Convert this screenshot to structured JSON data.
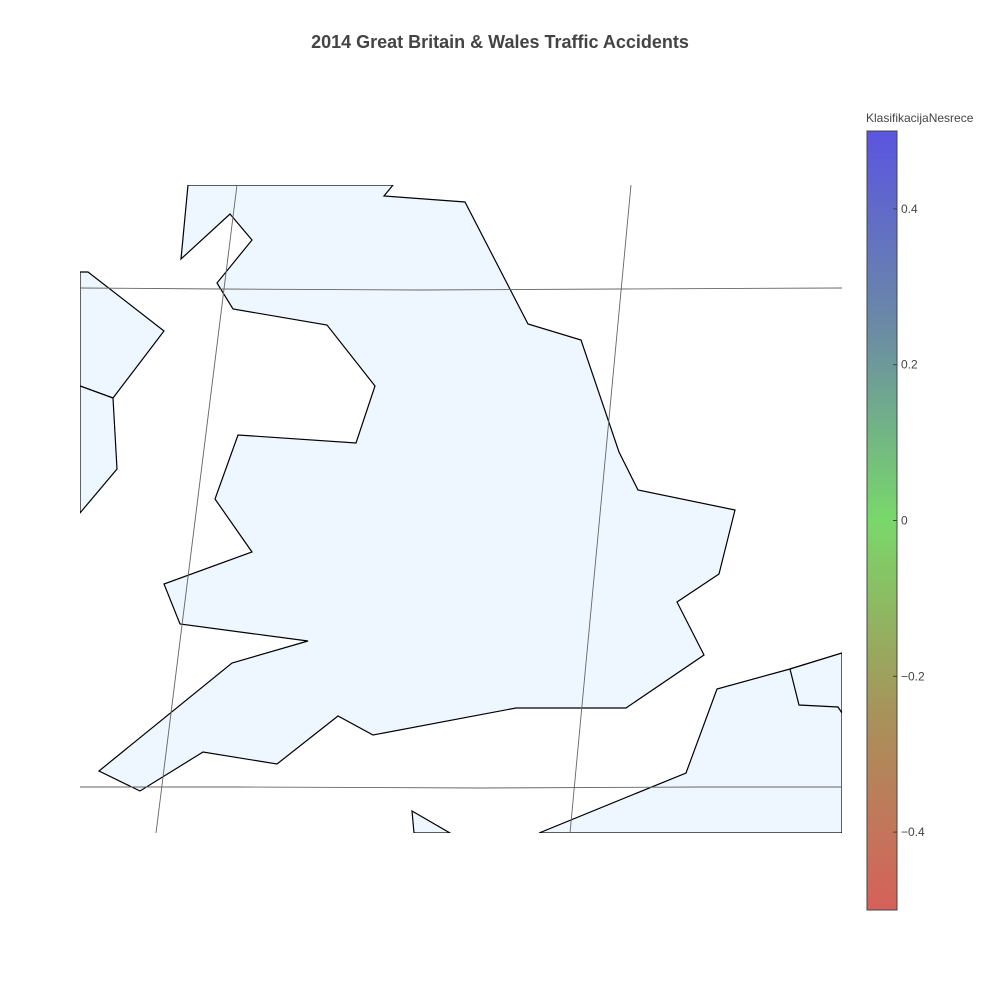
{
  "title": "2014 Great Britain & Wales Traffic Accidents",
  "colorbar": {
    "title": "KlasifikacijaNesrece",
    "min": -0.5,
    "max": 0.5,
    "ticks": [
      {
        "value": 0.4,
        "label": "0.4"
      },
      {
        "value": 0.2,
        "label": "0.2"
      },
      {
        "value": 0,
        "label": "0"
      },
      {
        "value": -0.2,
        "label": "−0.2"
      },
      {
        "value": -0.4,
        "label": "−0.4"
      }
    ],
    "colorscale": [
      "#d6615a",
      "#a8925a",
      "#79d86a",
      "#6a8aa6",
      "#5b55e0"
    ]
  },
  "map": {
    "land_color": "#eef6ff",
    "coastline_color": "#000000",
    "graticule_color": "#666666"
  }
}
